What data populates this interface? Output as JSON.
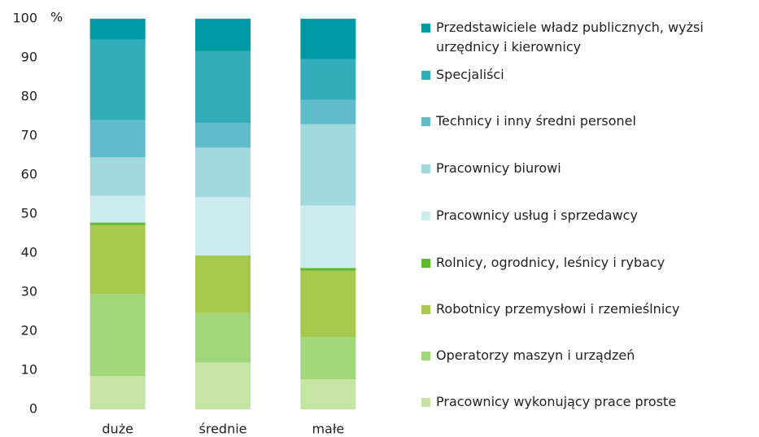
{
  "chart_data": {
    "type": "stacked_bar",
    "y_label": "%",
    "categories": [
      "duże",
      "średnie",
      "małe"
    ],
    "ylim": [
      0,
      100
    ],
    "yticks": [
      0,
      10,
      20,
      30,
      40,
      50,
      60,
      70,
      80,
      90,
      100
    ],
    "series": [
      {
        "name": "Pracownicy wykonujący prace proste",
        "color": "#c5e5a5",
        "values": [
          8.5,
          12,
          7.7
        ]
      },
      {
        "name": "Operatorzy maszyn i urządzeń",
        "color": "#a2d67a",
        "values": [
          21,
          12.7,
          10.8
        ]
      },
      {
        "name": "Robotnicy przemysłowi i rzemieślnicy",
        "color": "#a6c84c",
        "values": [
          17.7,
          14.6,
          17
        ]
      },
      {
        "name": "Rolnicy, ogrodnicy, leśnicy i rybacy",
        "color": "#5cb82e",
        "values": [
          0.6,
          0.1,
          0.7
        ]
      },
      {
        "name": "Pracownicy usług i sprzedawcy",
        "color": "#cdebee",
        "values": [
          6.9,
          14.9,
          16
        ]
      },
      {
        "name": "Pracownicy biurowi",
        "color": "#a0d8dd",
        "values": [
          9.8,
          12.7,
          20.8
        ]
      },
      {
        "name": "Technicy i inny średni personel",
        "color": "#5fbcc8",
        "values": [
          9.5,
          6.3,
          6.2
        ]
      },
      {
        "name": "Specjaliści",
        "color": "#32adb9",
        "values": [
          20.7,
          18.4,
          10.5
        ]
      },
      {
        "name": "Przedstawiciele władz publicznych, wyżsi urzędnicy i kierownicy",
        "color": "#009aa5",
        "values": [
          5.3,
          8.3,
          10.3
        ]
      }
    ],
    "legend": "right"
  }
}
